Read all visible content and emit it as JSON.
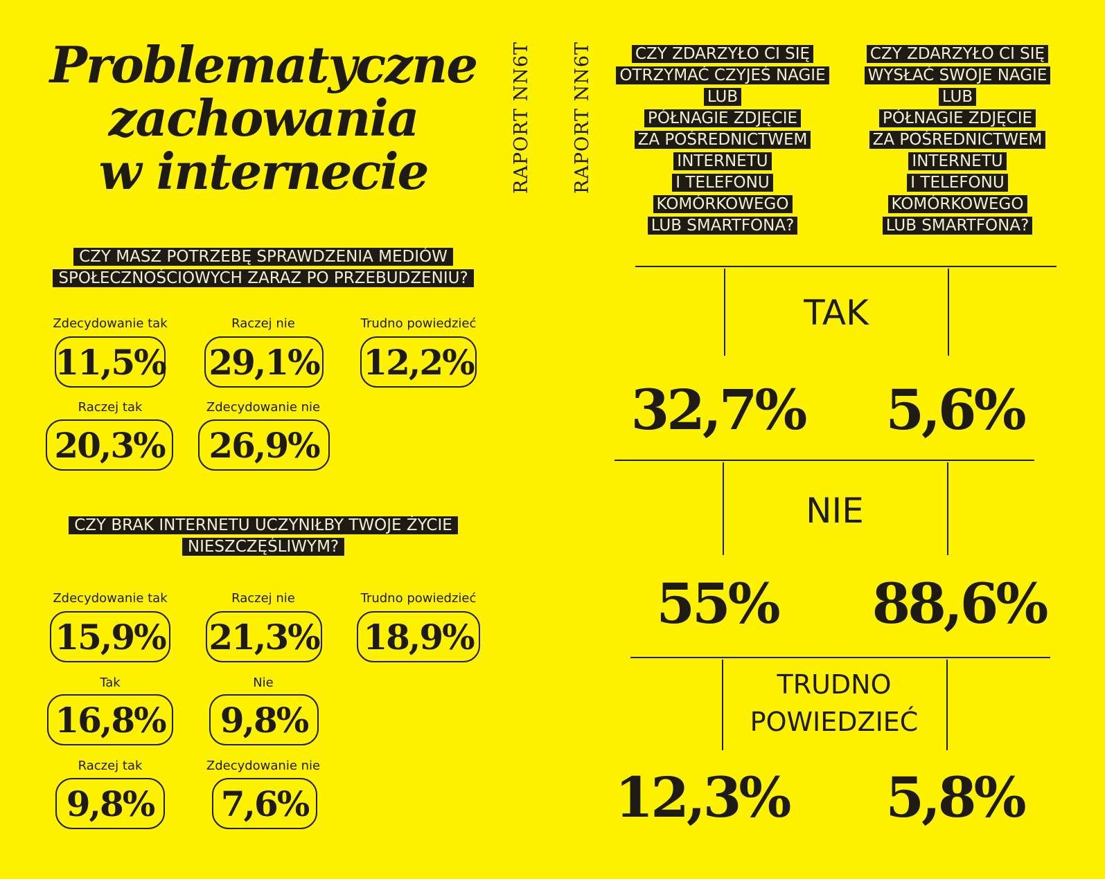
{
  "title": {
    "line1": "Problematyczne",
    "line2": "zachowania",
    "line3": "w internecie"
  },
  "side_label_1": "RAPORT NN6T",
  "side_label_2": "RAPORT NN6T",
  "survey1": {
    "question_line1": "CZY MASZ POTRZEBĘ SPRAWDZENIA MEDIÓW",
    "question_line2": "SPOŁECZNOŚCIOWYCH ZARAZ PO PRZEBUDZENIU?",
    "answers": [
      {
        "label": "Zdecydowanie tak",
        "value": "11,5%"
      },
      {
        "label": "Raczej nie",
        "value": "29,1%"
      },
      {
        "label": "Trudno powiedzieć",
        "value": "12,2%"
      },
      {
        "label": "Raczej tak",
        "value": "20,3%"
      },
      {
        "label": "Zdecydowanie nie",
        "value": "26,9%"
      }
    ]
  },
  "survey2": {
    "question_line1": "CZY BRAK INTERNETU UCZYNIŁBY TWOJE ŻYCIE",
    "question_line2": "NIESZCZĘŚLIWYM?",
    "answers": [
      {
        "label": "Zdecydowanie tak",
        "value": "15,9%"
      },
      {
        "label": "Raczej nie",
        "value": "21,3%"
      },
      {
        "label": "Trudno powiedzieć",
        "value": "18,9%"
      },
      {
        "label": "Tak",
        "value": "16,8%"
      },
      {
        "label": "Nie",
        "value": "9,8%"
      },
      {
        "label": "Raczej tak",
        "value": "9,8%"
      },
      {
        "label": "Zdecydowanie nie",
        "value": "7,6%"
      }
    ]
  },
  "right": {
    "q1_lines": [
      "CZY ZDARZYŁO CI SIĘ",
      "OTRZYMAĆ CZYJEŚ NAGIE",
      "LUB",
      "PÓŁNAGIE ZDJĘCIE",
      "ZA POŚREDNICTWEM",
      "INTERNETU",
      "I TELEFONU",
      "KOMÓRKOWEGO",
      "LUB SMARTFONA?"
    ],
    "q2_lines": [
      "CZY ZDARZYŁO CI SIĘ",
      "WYSŁAĆ SWOJE NAGIE",
      "LUB",
      "PÓŁNAGIE ZDJĘCIE",
      "ZA POŚREDNICTWEM",
      "INTERNETU",
      "I TELEFONU",
      "KOMÓRKOWEGO",
      "LUB SMARTFONA?"
    ],
    "rows": [
      {
        "answer": "TAK",
        "q1": "32,7%",
        "q2": "5,6%"
      },
      {
        "answer": "NIE",
        "q1": "55%",
        "q2": "88,6%"
      },
      {
        "answer_line1": "TRUDNO",
        "answer_line2": "POWIEDZIEĆ",
        "q1": "12,3%",
        "q2": "5,8%"
      }
    ]
  },
  "colors": {
    "background": "#fef200",
    "ink": "#1d1b14",
    "label_text": "#f4f0d0"
  }
}
